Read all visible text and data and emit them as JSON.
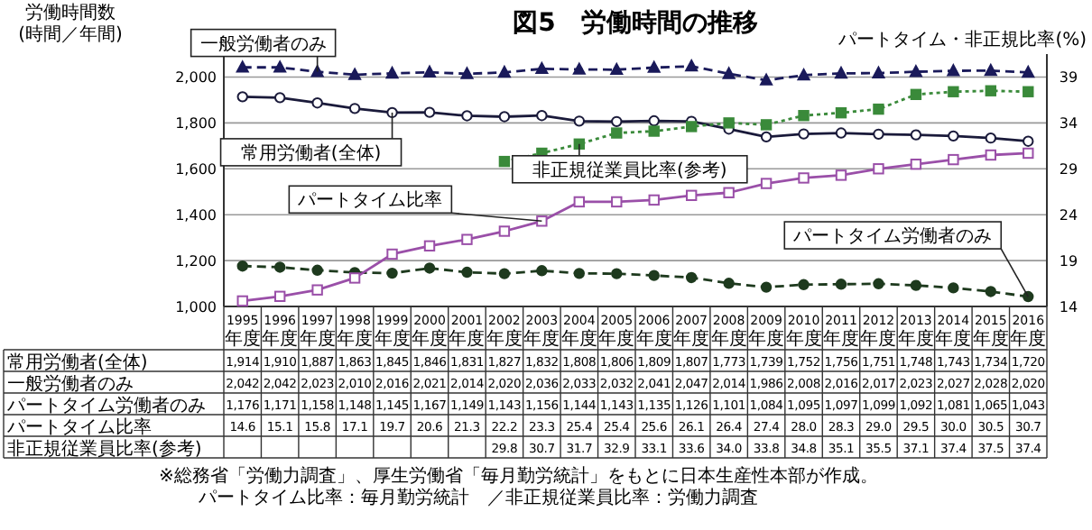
{
  "chart_data": {
    "type": "line",
    "title": "図5　労働時間の推移",
    "ylabel": "労働時間数\n(時間／年間)",
    "y2label": "パートタイム・非正規比率(%)",
    "categories": [
      "1995年度",
      "1996年度",
      "1997年度",
      "1998年度",
      "1999年度",
      "2000年度",
      "2001年度",
      "2002年度",
      "2003年度",
      "2004年度",
      "2005年度",
      "2006年度",
      "2007年度",
      "2008年度",
      "2009年度",
      "2010年度",
      "2011年度",
      "2012年度",
      "2013年度",
      "2014年度",
      "2015年度",
      "2016年度"
    ],
    "series": [
      {
        "name": "常用労働者(全体)",
        "color": "#1a1a3a",
        "marker": "circle",
        "line_style": "solid",
        "values": [
          1914,
          1910,
          1887,
          1863,
          1845,
          1846,
          1831,
          1827,
          1832,
          1808,
          1806,
          1809,
          1807,
          1773,
          1739,
          1752,
          1756,
          1751,
          1748,
          1743,
          1734,
          1720
        ],
        "value_labels": [
          "1,914",
          "1,910",
          "1,887",
          "1,863",
          "1,845",
          "1,846",
          "1,831",
          "1,827",
          "1,832",
          "1,808",
          "1,806",
          "1,809",
          "1,807",
          "1,773",
          "1,739",
          "1,752",
          "1,756",
          "1,751",
          "1,748",
          "1,743",
          "1,734",
          "1,720"
        ]
      },
      {
        "name": "一般労働者のみ",
        "color": "#1a1a5a",
        "marker": "triangle",
        "line_style": "dashed",
        "values": [
          2042,
          2042,
          2023,
          2010,
          2016,
          2021,
          2014,
          2020,
          2036,
          2033,
          2032,
          2041,
          2047,
          2014,
          1986,
          2008,
          2016,
          2017,
          2023,
          2027,
          2028,
          2020
        ],
        "value_labels": [
          "2,042",
          "2,042",
          "2,023",
          "2,010",
          "2,016",
          "2,021",
          "2,014",
          "2,020",
          "2,036",
          "2,033",
          "2,032",
          "2,041",
          "2,047",
          "2,014",
          "1,986",
          "2,008",
          "2,016",
          "2,017",
          "2,023",
          "2,027",
          "2,028",
          "2,020"
        ]
      },
      {
        "name": "パートタイム労働者のみ",
        "color": "#1e3a1e",
        "marker": "circle",
        "line_style": "dashed",
        "values": [
          1176,
          1171,
          1158,
          1148,
          1145,
          1167,
          1149,
          1143,
          1156,
          1144,
          1143,
          1135,
          1126,
          1101,
          1084,
          1095,
          1097,
          1099,
          1092,
          1081,
          1065,
          1043
        ],
        "value_labels": [
          "1,176",
          "1,171",
          "1,158",
          "1,148",
          "1,145",
          "1,167",
          "1,149",
          "1,143",
          "1,156",
          "1,144",
          "1,143",
          "1,135",
          "1,126",
          "1,101",
          "1,084",
          "1,095",
          "1,097",
          "1,099",
          "1,092",
          "1,081",
          "1,065",
          "1,043"
        ]
      },
      {
        "name": "パートタイム比率",
        "color": "#9a4fa8",
        "marker": "square",
        "line_style": "solid",
        "axis": "y2",
        "values": [
          14.6,
          15.1,
          15.8,
          17.1,
          19.7,
          20.6,
          21.3,
          22.2,
          23.3,
          25.4,
          25.4,
          25.6,
          26.1,
          26.4,
          27.4,
          28.0,
          28.3,
          29.0,
          29.5,
          30.0,
          30.5,
          30.7
        ],
        "value_labels": [
          "14.6",
          "15.1",
          "15.8",
          "17.1",
          "19.7",
          "20.6",
          "21.3",
          "22.2",
          "23.3",
          "25.4",
          "25.4",
          "25.6",
          "26.1",
          "26.4",
          "27.4",
          "28.0",
          "28.3",
          "29.0",
          "29.5",
          "30.0",
          "30.5",
          "30.7"
        ]
      },
      {
        "name": "非正規従業員比率(参考)",
        "color": "#3a8a3a",
        "marker": "square",
        "line_style": "dotted",
        "axis": "y2",
        "values": [
          null,
          null,
          null,
          null,
          null,
          null,
          null,
          29.8,
          30.7,
          31.7,
          32.9,
          33.1,
          33.6,
          34.0,
          33.8,
          34.8,
          35.1,
          35.5,
          37.1,
          37.4,
          37.5,
          37.4
        ],
        "value_labels": [
          null,
          null,
          null,
          null,
          null,
          null,
          null,
          "29.8",
          "30.7",
          "31.7",
          "32.9",
          "33.1",
          "33.6",
          "34.0",
          "33.8",
          "34.8",
          "35.1",
          "35.5",
          "37.1",
          "37.4",
          "37.5",
          "37.4"
        ]
      }
    ],
    "ylim": [
      1000,
      2100
    ],
    "yticks": [
      {
        "value": 1000,
        "label": "1,000"
      },
      {
        "value": 1200,
        "label": "1,200"
      },
      {
        "value": 1400,
        "label": "1,400"
      },
      {
        "value": 1600,
        "label": "1,600"
      },
      {
        "value": 1800,
        "label": "1,800"
      },
      {
        "value": 2000,
        "label": "2,000"
      }
    ],
    "y2lim": [
      14,
      41.5
    ],
    "y2ticks": [
      14,
      19,
      24,
      29,
      34,
      39
    ],
    "grid": "y",
    "annotations": [
      "※総務省「労働力調査」、厚生労働省「毎月勤労統計」をもとに日本生産性本部が作成。",
      "パートタイム比率：毎月勤労統計　／非正規従業員比率：労働力調査"
    ]
  }
}
